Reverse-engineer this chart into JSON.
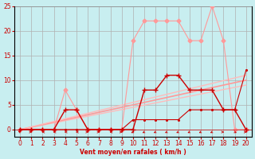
{
  "bg_color": "#c8eef0",
  "grid_color": "#b0b0b0",
  "x_label": "Vent moyen/en rafales ( km/h )",
  "xlim": [
    -0.5,
    20.5
  ],
  "ylim": [
    0,
    25
  ],
  "xticks": [
    0,
    1,
    2,
    3,
    4,
    5,
    6,
    7,
    8,
    9,
    10,
    11,
    12,
    13,
    14,
    15,
    16,
    17,
    18,
    19,
    20
  ],
  "yticks": [
    0,
    5,
    10,
    15,
    20,
    25
  ],
  "line1_x": [
    0,
    1,
    2,
    3,
    4,
    5,
    6,
    7,
    8,
    9,
    10,
    11,
    12,
    13,
    14,
    15,
    16,
    17,
    18,
    19,
    20
  ],
  "line1_y": [
    0,
    0,
    0,
    0,
    8,
    4,
    0,
    0,
    0,
    0,
    18,
    22,
    22,
    22,
    22,
    18,
    18,
    25,
    18,
    0,
    0
  ],
  "line1_color": "#ff9999",
  "line2_x": [
    0,
    1,
    2,
    3,
    4,
    5,
    6,
    7,
    8,
    9,
    10,
    11,
    12,
    13,
    14,
    15,
    16,
    17,
    18,
    19,
    20
  ],
  "line2_y": [
    0,
    0,
    0,
    0,
    4,
    4,
    0,
    0,
    0,
    0,
    0,
    8,
    8,
    11,
    11,
    8,
    8,
    8,
    4,
    4,
    0
  ],
  "line2_color": "#cc0000",
  "line3_x": [
    0,
    1,
    2,
    3,
    4,
    5,
    6,
    7,
    8,
    9,
    10,
    11,
    12,
    13,
    14,
    15,
    16,
    17,
    18,
    19,
    20
  ],
  "line3_y": [
    0,
    0,
    0,
    0,
    0,
    0,
    0,
    0,
    0,
    0,
    2,
    2,
    2,
    2,
    2,
    4,
    4,
    4,
    4,
    4,
    12
  ],
  "line3_color": "#cc0000",
  "reg_lines": [
    {
      "x": [
        0,
        20
      ],
      "y": [
        0,
        9.0
      ],
      "color": "#ffbbbb",
      "lw": 1.0
    },
    {
      "x": [
        0,
        20
      ],
      "y": [
        0,
        10.0
      ],
      "color": "#ff9999",
      "lw": 1.2
    },
    {
      "x": [
        0,
        20
      ],
      "y": [
        0,
        11.0
      ],
      "color": "#ffbbbb",
      "lw": 1.0
    }
  ],
  "label_color": "#cc0000",
  "tick_color": "#cc0000",
  "arrows_x": [
    0,
    1,
    2,
    3,
    4,
    5,
    6,
    7,
    8,
    9,
    10,
    11,
    12,
    13,
    14,
    15,
    16,
    17,
    18,
    19,
    20
  ],
  "arrows_angle": [
    225,
    90,
    270,
    270,
    270,
    270,
    90,
    90,
    270,
    90,
    315,
    315,
    315,
    315,
    315,
    315,
    315,
    315,
    90,
    45,
    90
  ]
}
